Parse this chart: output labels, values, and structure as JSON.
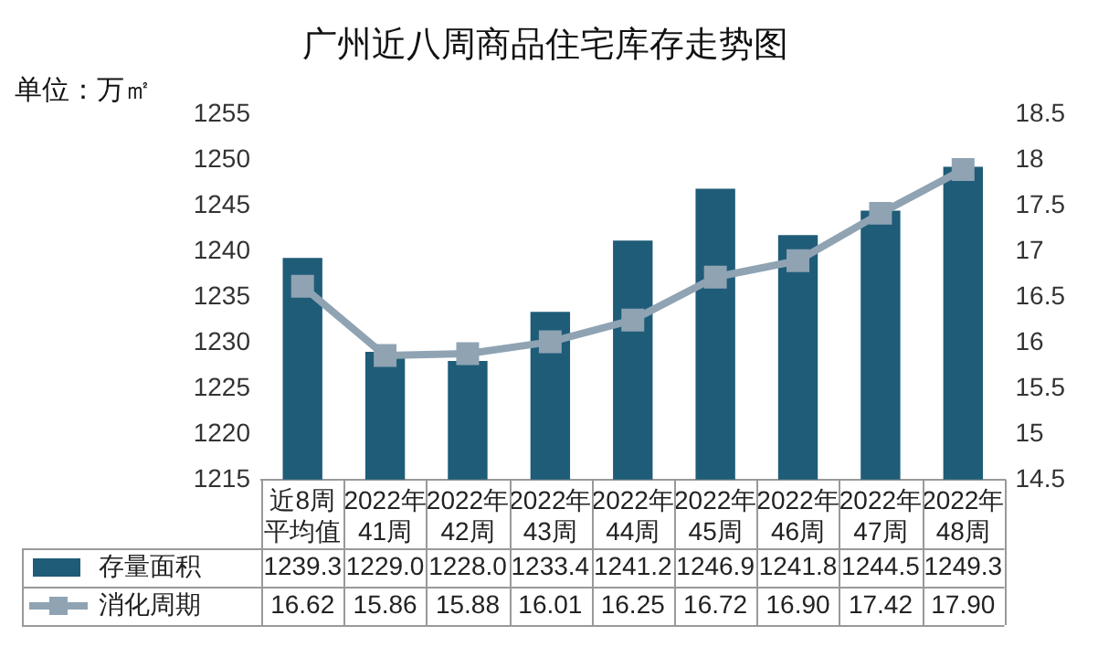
{
  "chart_data": {
    "type": "bar",
    "title": "广州近八周商品住宅库存走势图",
    "ylabel": "单位：万㎡",
    "categories": [
      "近8周平均值",
      "2022年41周",
      "2022年42周",
      "2022年43周",
      "2022年44周",
      "2022年45周",
      "2022年46周",
      "2022年47周",
      "2022年48周"
    ],
    "series": [
      {
        "name": "存量面积",
        "color": "#1f5c78",
        "values": [
          1239.3,
          1229.0,
          1228.0,
          1233.4,
          1241.2,
          1246.9,
          1241.8,
          1244.5,
          1249.3
        ],
        "value_labels": [
          "1239.3",
          "1229.0",
          "1228.0",
          "1233.4",
          "1241.2",
          "1246.9",
          "1241.8",
          "1244.5",
          "1249.3"
        ]
      },
      {
        "name": "消化周期",
        "type": "line",
        "axis": "y2",
        "color": "#8fa3b3",
        "marker": "square",
        "values": [
          16.62,
          15.86,
          15.88,
          16.01,
          16.25,
          16.72,
          16.9,
          17.42,
          17.9
        ],
        "value_labels": [
          "16.62",
          "15.86",
          "15.88",
          "16.01",
          "16.25",
          "16.72",
          "16.90",
          "17.42",
          "17.90"
        ]
      }
    ],
    "ylim": [
      1215,
      1255
    ],
    "yticks": [
      1215,
      1220,
      1225,
      1230,
      1235,
      1240,
      1245,
      1250,
      1255
    ],
    "y2lim": [
      14.5,
      18.5
    ],
    "y2ticks": [
      14.5,
      15,
      15.5,
      16,
      16.5,
      17,
      17.5,
      18,
      18.5
    ],
    "legend": "bottom",
    "grid": false
  }
}
